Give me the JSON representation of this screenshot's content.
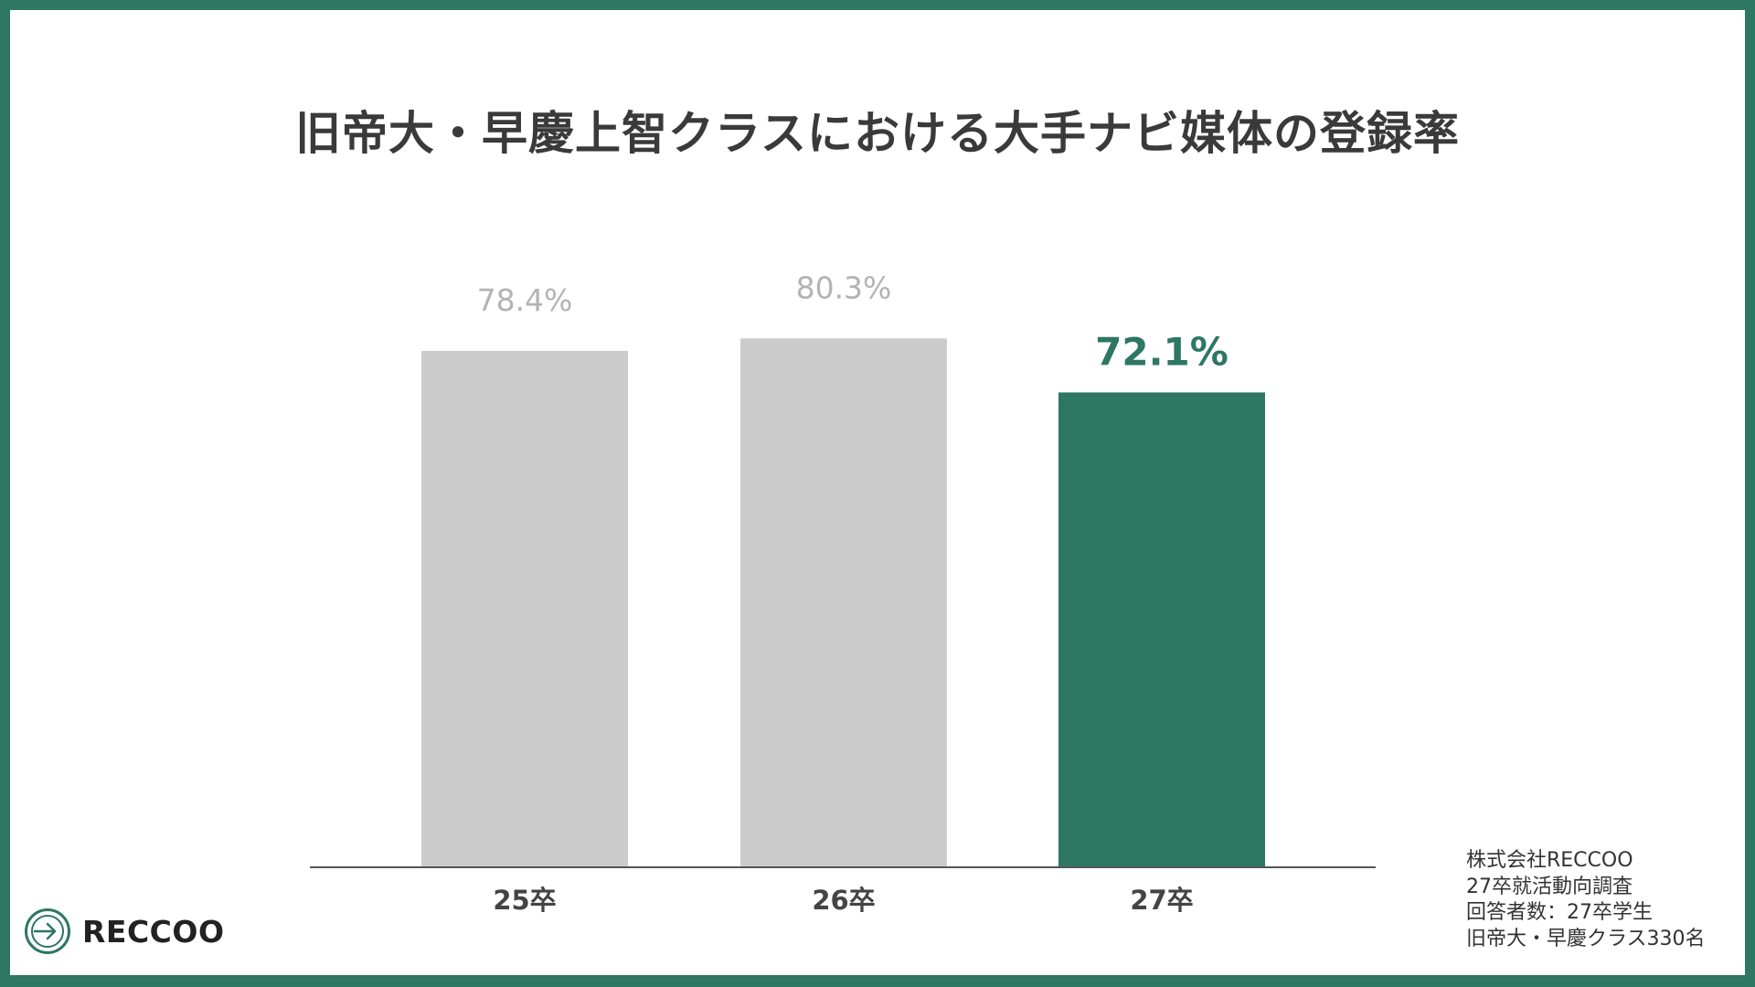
{
  "title": "旧帝大・早慶上智クラスにおける大手ナビ媒体の登録率",
  "colors": {
    "frame": "#2d7763",
    "highlight_bar": "#2d7763",
    "muted_bar": "#cccccc",
    "muted_label": "#b3b3b3",
    "axis_line": "#555555"
  },
  "chart_data": {
    "type": "bar",
    "categories": [
      "25卒",
      "26卒",
      "27卒"
    ],
    "values": [
      78.4,
      80.3,
      72.1
    ],
    "value_labels": [
      "78.4%",
      "80.3%",
      "72.1%"
    ],
    "highlight_index": 2,
    "ylim": [
      0,
      100
    ],
    "grid": false,
    "legend": "none"
  },
  "source": {
    "lines": [
      "株式会社RECCOO",
      "27卒就活動向調査",
      "回答者数：27卒学生",
      "旧帝大・早慶クラス330名"
    ]
  },
  "logo": {
    "text": "RECCOO",
    "icon": "reccoo-logo-icon"
  }
}
